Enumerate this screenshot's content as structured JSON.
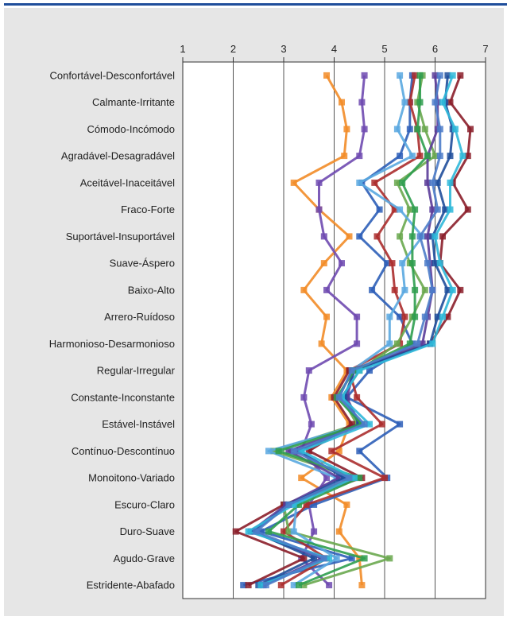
{
  "chart_data": {
    "type": "line",
    "orientation": "horizontal-profile",
    "title": "",
    "xlabel": "",
    "ylabel": "",
    "xlim": [
      1,
      7
    ],
    "x_ticks": [
      "1",
      "2",
      "3",
      "4",
      "5",
      "6",
      "7"
    ],
    "grid": "vertical",
    "legend": "none",
    "categories": [
      "Confortável-Desconfortável",
      "Calmante-Irritante",
      "Cómodo-Incómodo",
      "Agradável-Desagradável",
      "Aceitável-Inaceitável",
      "Fraco-Forte",
      "Suportável-Insuportável",
      "Suave-Áspero",
      "Baixo-Alto",
      "Arrero-Ruídoso",
      "Harmonioso-Desarmonioso",
      "Regular-Irregular",
      "Constante-Inconstante",
      "Estável-Instável",
      "Contínuo-Descontínuo",
      "Monoitono-Variado",
      "Escuro-Claro",
      "Duro-Suave",
      "Agudo-Grave",
      "Estridente-Abafado"
    ],
    "series": [
      {
        "color": "#f28c28",
        "values": [
          3.85,
          4.15,
          4.25,
          4.2,
          3.2,
          3.7,
          4.3,
          3.8,
          3.4,
          3.85,
          3.75,
          4.25,
          3.95,
          4.3,
          4.1,
          3.35,
          4.25,
          4.1,
          4.5,
          4.55
        ]
      },
      {
        "color": "#6f4ab0",
        "values": [
          4.6,
          4.55,
          4.6,
          4.5,
          3.7,
          3.7,
          3.8,
          4.15,
          3.85,
          4.45,
          4.45,
          3.5,
          3.4,
          3.55,
          3.35,
          3.85,
          3.5,
          3.6,
          3.35,
          3.9
        ]
      },
      {
        "color": "#2e5fb8",
        "values": [
          5.55,
          5.5,
          5.5,
          5.3,
          4.55,
          4.9,
          4.5,
          5.05,
          4.75,
          5.3,
          5.55,
          4.7,
          4.25,
          5.3,
          4.5,
          5.05,
          3.6,
          2.55,
          4.35,
          2.2
        ]
      },
      {
        "color": "#ab2d2d",
        "values": [
          5.6,
          5.5,
          5.65,
          5.7,
          4.8,
          5.2,
          4.85,
          5.15,
          5.2,
          5.4,
          5.3,
          4.3,
          4.45,
          4.95,
          3.95,
          5.0,
          3.45,
          3.0,
          3.85,
          2.95
        ]
      },
      {
        "color": "#6aa84f",
        "values": [
          5.75,
          5.65,
          5.8,
          6.0,
          5.25,
          5.5,
          5.3,
          5.5,
          5.8,
          5.55,
          5.25,
          4.5,
          4.15,
          4.45,
          2.8,
          4.4,
          3.0,
          3.1,
          5.1,
          3.4
        ]
      },
      {
        "color": "#5aa8e0",
        "values": [
          5.3,
          5.4,
          5.25,
          5.55,
          4.5,
          5.3,
          5.75,
          5.35,
          5.4,
          5.1,
          5.1,
          4.35,
          4.1,
          4.55,
          2.7,
          4.05,
          3.25,
          3.2,
          4.05,
          3.2
        ]
      },
      {
        "color": "#8b1e2a",
        "values": [
          6.5,
          6.3,
          6.7,
          6.65,
          6.35,
          6.65,
          6.15,
          6.1,
          6.5,
          6.25,
          5.9,
          4.3,
          4.0,
          4.35,
          3.5,
          4.55,
          3.0,
          2.05,
          3.4,
          2.3
        ]
      },
      {
        "color": "#5b3c99",
        "values": [
          6.0,
          6.05,
          6.05,
          5.85,
          5.85,
          5.95,
          5.85,
          5.9,
          5.95,
          5.85,
          5.75,
          4.4,
          4.25,
          4.5,
          3.1,
          4.1,
          3.05,
          2.35,
          3.75,
          2.6
        ]
      },
      {
        "color": "#1f4e9b",
        "values": [
          6.25,
          6.2,
          6.35,
          6.3,
          6.05,
          6.2,
          5.95,
          6.0,
          6.25,
          6.05,
          5.9,
          4.4,
          4.2,
          4.5,
          3.3,
          4.2,
          3.1,
          2.4,
          3.6,
          2.5
        ]
      },
      {
        "color": "#2f9e4f",
        "values": [
          5.7,
          5.7,
          5.65,
          5.85,
          5.35,
          5.6,
          5.55,
          5.55,
          5.6,
          5.6,
          5.5,
          4.4,
          4.05,
          4.55,
          2.9,
          4.5,
          3.3,
          2.7,
          4.6,
          3.3
        ]
      },
      {
        "color": "#2fb8d9",
        "values": [
          6.35,
          6.15,
          6.4,
          6.55,
          6.3,
          6.3,
          6.0,
          6.1,
          6.35,
          6.15,
          5.95,
          4.5,
          4.15,
          4.7,
          3.35,
          4.4,
          3.2,
          2.3,
          3.9,
          2.55
        ]
      },
      {
        "color": "#4c7cc9",
        "values": [
          6.1,
          6.0,
          6.1,
          6.1,
          5.95,
          6.05,
          5.7,
          5.85,
          5.95,
          5.8,
          5.65,
          4.35,
          4.1,
          4.6,
          3.2,
          4.3,
          3.1,
          2.45,
          3.8,
          2.65
        ]
      }
    ]
  }
}
